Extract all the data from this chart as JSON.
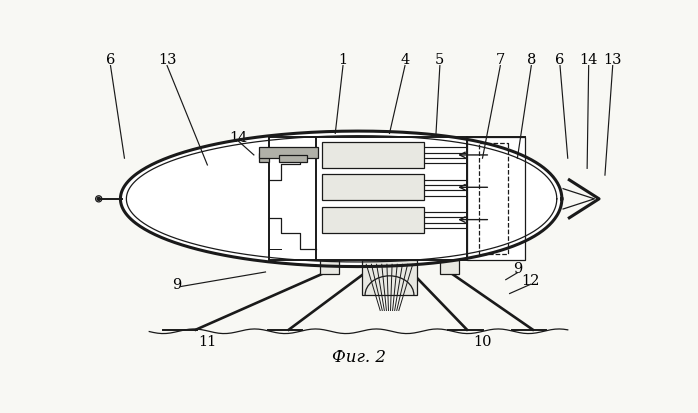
{
  "title": "Фиг. 2",
  "bg_color": "#f8f8f4",
  "line_color": "#1a1a1a",
  "fill_white": "#ffffff",
  "fill_light": "#e8e8e2",
  "fill_mid": "#d0d0c8",
  "fill_dark": "#b0b0a8"
}
